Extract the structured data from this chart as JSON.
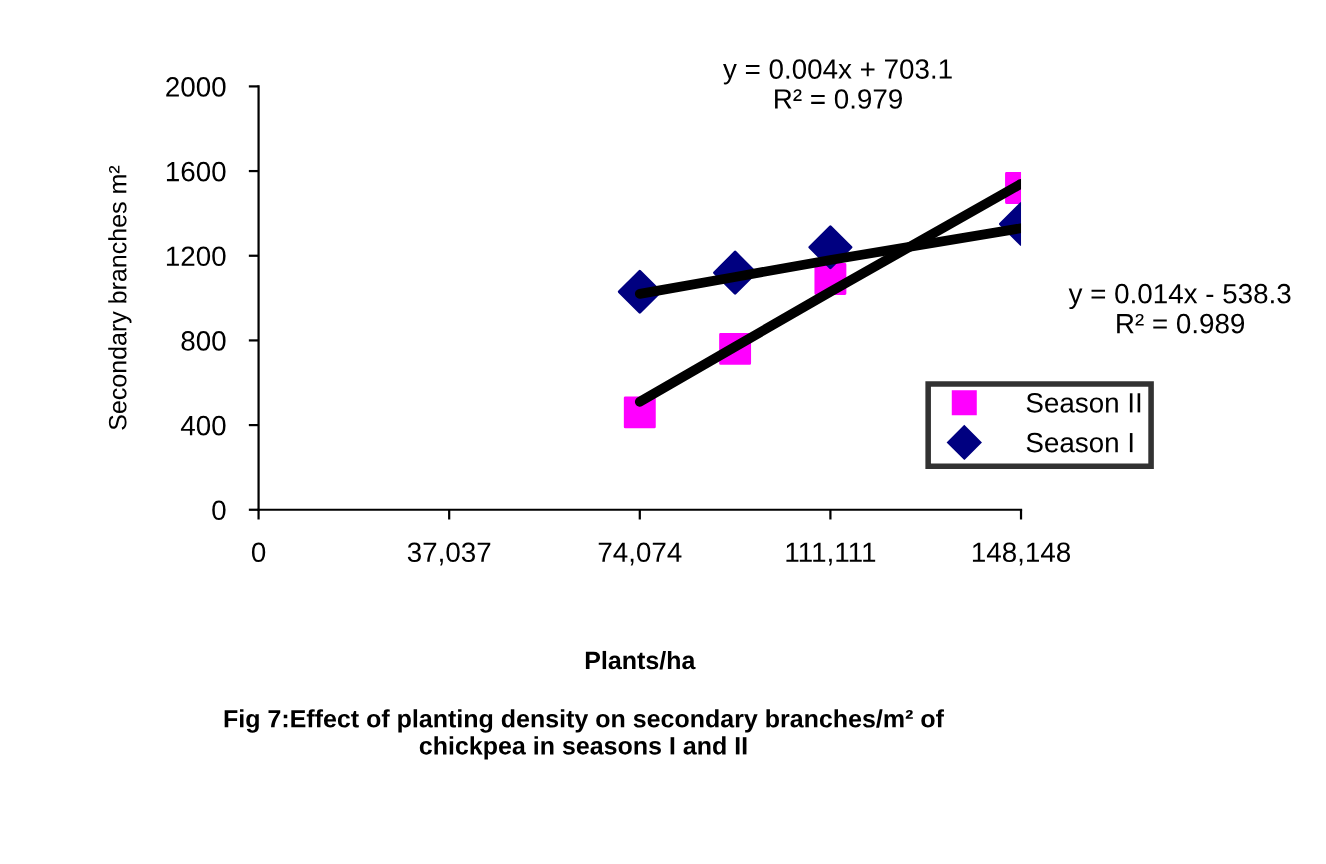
{
  "chart_data": {
    "type": "scatter",
    "xlabel": "Plants/ha",
    "ylabel": "Secondary branches m²",
    "annotations": [
      "y = 0.004x + 703.1\nR² = 0.979",
      "y = 0.014x - 538.3\nR² = 0.989",
      "Fig 7:Effect of planting density on secondary branches/m² of\nchickpea in seasons I and II"
    ],
    "x": [
      74074,
      92593,
      111111,
      148148
    ],
    "series": [
      {
        "name": "Season II",
        "color": "#ff00ff",
        "marker": "square",
        "values": [
          460,
          760,
          1090,
          1520
        ]
      },
      {
        "name": "Season I",
        "color": "#000080",
        "marker": "diamond",
        "values": [
          1030,
          1120,
          1240,
          1350
        ]
      },
      {
        "type": "line",
        "color": "#000000",
        "values": [
          1020,
          1100,
          1180,
          1330
        ]
      },
      {
        "type": "line",
        "color": "#000000",
        "values": [
          510,
          770,
          1030,
          1540
        ]
      }
    ],
    "xlim": [
      0,
      148148
    ],
    "ylim": [
      0,
      2000
    ],
    "xticks": [
      {
        "value": 0,
        "label": "0"
      },
      {
        "value": 37037,
        "label": "37,037"
      },
      {
        "value": 74074,
        "label": "74,074"
      },
      {
        "value": 111111,
        "label": "111,111"
      },
      {
        "value": 148148,
        "label": "148,148"
      }
    ],
    "yticks": [
      0,
      400,
      800,
      1200,
      1600,
      2000
    ],
    "legend": "right",
    "grid": false
  }
}
